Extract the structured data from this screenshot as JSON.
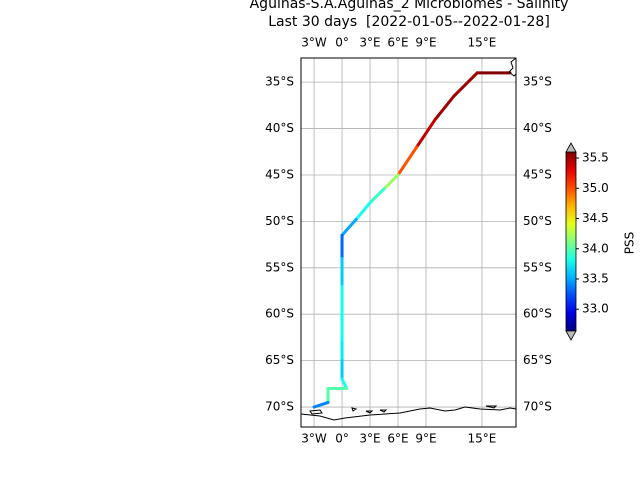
{
  "map": {
    "title": "Agulhas-S.A.Agulhas_2 Microbiomes - Salinity",
    "subtitle": "Last 30 days  [2022-01-05--2022-01-28]",
    "lonlim": [
      -4.4,
      18.65
    ],
    "latlim": [
      -72.15,
      -32.4
    ],
    "lonticks": [
      {
        "value": -3,
        "label": "3°W"
      },
      {
        "value": 0,
        "label": "0°"
      },
      {
        "value": 3,
        "label": "3°E"
      },
      {
        "value": 6,
        "label": "6°E"
      },
      {
        "value": 9,
        "label": "9°E"
      },
      {
        "value": 15,
        "label": "15°E"
      }
    ],
    "latticks": [
      {
        "value": -35,
        "label": "35°S"
      },
      {
        "value": -40,
        "label": "40°S"
      },
      {
        "value": -45,
        "label": "45°S"
      },
      {
        "value": -50,
        "label": "50°S"
      },
      {
        "value": -55,
        "label": "55°S"
      },
      {
        "value": -60,
        "label": "60°S"
      },
      {
        "value": -65,
        "label": "65°S"
      },
      {
        "value": -70,
        "label": "70°S"
      }
    ],
    "colorbar": {
      "label": "PSS",
      "colormap": "jet",
      "lim": [
        32.64,
        35.6
      ],
      "ticks": [
        {
          "value": 33,
          "label": "33.0"
        },
        33.5,
        {
          "value": 34,
          "label": "34.0"
        },
        34.5,
        {
          "value": 35,
          "label": "35.0"
        },
        35.5
      ]
    },
    "track": {
      "lon": [
        18,
        14.5,
        12,
        10,
        8,
        6,
        4.5,
        3,
        1.5,
        0,
        0,
        0,
        0,
        0,
        0,
        0,
        0.5,
        -1.5,
        -1.5,
        -3
      ],
      "lat": [
        -34,
        -34,
        -36.5,
        -39,
        -42,
        -45,
        -46.5,
        -48,
        -49.8,
        -51.5,
        -54,
        -57,
        -60,
        -63,
        -65,
        -67,
        -68,
        -68,
        -69.5,
        -70
      ],
      "salinity": [
        35.6,
        35.5,
        35.5,
        35.4,
        35.0,
        34.2,
        33.9,
        33.8,
        33.5,
        33.3,
        33.6,
        33.8,
        33.8,
        33.7,
        33.6,
        33.8,
        34.0,
        34.0,
        33.4,
        33.6
      ]
    }
  }
}
